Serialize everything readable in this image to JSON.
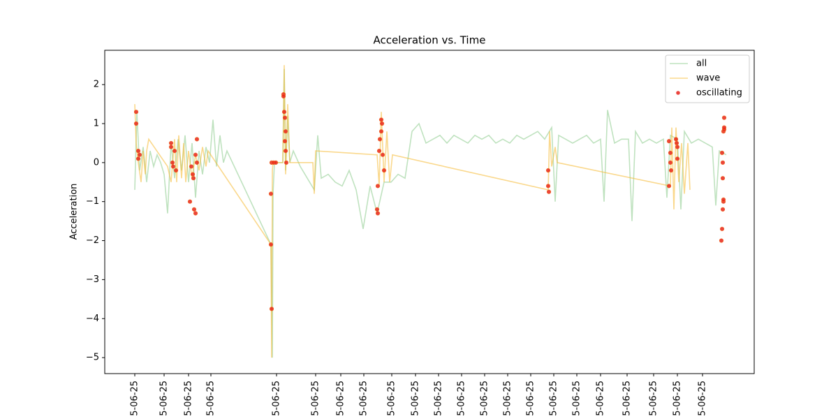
{
  "chart_data": {
    "type": "line",
    "title": "Acceleration vs. Time",
    "ylabel": "Acceleration",
    "xlim": [
      0,
      930
    ],
    "ylim": [
      -5.41,
      2.88
    ],
    "legend": "upper right",
    "xticks": [
      {
        "value": 43,
        "label": "5-06-25"
      },
      {
        "value": 85,
        "label": "5-06-25"
      },
      {
        "value": 120,
        "label": "5-06-25"
      },
      {
        "value": 152,
        "label": "5-06-25"
      },
      {
        "value": 246,
        "label": "5-06-25"
      },
      {
        "value": 302,
        "label": "5-06-25"
      },
      {
        "value": 338,
        "label": "5-06-25"
      },
      {
        "value": 371,
        "label": "5-06-25"
      },
      {
        "value": 411,
        "label": "5-06-25"
      },
      {
        "value": 445,
        "label": "5-06-25"
      },
      {
        "value": 478,
        "label": "5-06-25"
      },
      {
        "value": 511,
        "label": "5-06-25"
      },
      {
        "value": 544,
        "label": "5-06-25"
      },
      {
        "value": 577,
        "label": "5-06-25"
      },
      {
        "value": 610,
        "label": "5-06-25"
      },
      {
        "value": 643,
        "label": "5-06-25"
      },
      {
        "value": 676,
        "label": "5-06-25"
      },
      {
        "value": 710,
        "label": "5-06-25"
      },
      {
        "value": 748,
        "label": "5-06-25"
      },
      {
        "value": 786,
        "label": "5-06-25"
      },
      {
        "value": 820,
        "label": "5-06-25"
      },
      {
        "value": 856,
        "label": "5-06-25"
      }
    ],
    "yticks": [
      {
        "value": -5,
        "label": "−5"
      },
      {
        "value": -4,
        "label": "−4"
      },
      {
        "value": -3,
        "label": "−3"
      },
      {
        "value": -2,
        "label": "−2"
      },
      {
        "value": -1,
        "label": "−1"
      },
      0,
      1,
      2
    ],
    "series": [
      {
        "name": "all",
        "type": "line",
        "color": "#2ca02c",
        "alpha": 0.3,
        "x": [
          43,
          46,
          50,
          55,
          60,
          65,
          70,
          75,
          80,
          85,
          90,
          95,
          100,
          105,
          110,
          115,
          120,
          125,
          130,
          135,
          140,
          145,
          150,
          155,
          160,
          165,
          170,
          175,
          238,
          240,
          241,
          243,
          255,
          257,
          259,
          262,
          265,
          270,
          280,
          300,
          305,
          310,
          320,
          330,
          340,
          350,
          360,
          370,
          380,
          390,
          400,
          410,
          420,
          430,
          440,
          450,
          460,
          470,
          480,
          490,
          500,
          510,
          520,
          530,
          540,
          550,
          560,
          570,
          580,
          590,
          600,
          610,
          620,
          630,
          640,
          645,
          650,
          660,
          670,
          680,
          690,
          700,
          710,
          715,
          720,
          730,
          740,
          750,
          755,
          760,
          770,
          780,
          790,
          800,
          805,
          810,
          820,
          825,
          830,
          840,
          850,
          860,
          870,
          875,
          880,
          890
        ],
        "values": [
          -0.7,
          1.3,
          -0.2,
          0.4,
          -0.5,
          0.3,
          -0.1,
          0.2,
          0.0,
          -0.3,
          -1.3,
          0.5,
          -0.4,
          0.6,
          -0.2,
          0.7,
          -0.5,
          0.5,
          -0.9,
          0.3,
          -0.3,
          0.4,
          0.0,
          1.1,
          -0.1,
          0.7,
          0.0,
          0.3,
          -2.1,
          -5.0,
          -0.8,
          0.0,
          0.0,
          2.4,
          -0.2,
          1.2,
          0.0,
          0.3,
          -0.1,
          -0.7,
          0.7,
          -0.4,
          -0.3,
          -0.5,
          -0.6,
          -0.2,
          -0.7,
          -1.7,
          -0.6,
          -1.3,
          -0.5,
          -0.5,
          -0.3,
          -0.4,
          0.8,
          1.0,
          0.5,
          0.6,
          0.7,
          0.5,
          0.7,
          0.6,
          0.5,
          0.7,
          0.6,
          0.7,
          0.5,
          0.6,
          0.5,
          0.7,
          0.6,
          0.7,
          0.8,
          0.6,
          0.9,
          -1.0,
          0.7,
          0.6,
          0.5,
          0.6,
          0.7,
          0.5,
          0.6,
          -1.0,
          1.35,
          0.5,
          0.6,
          0.6,
          -1.5,
          0.8,
          0.5,
          0.6,
          0.5,
          0.6,
          -0.9,
          0.7,
          0.6,
          -1.2,
          0.8,
          0.5,
          0.6,
          0.5,
          0.4,
          -1.1,
          0.3,
          0.2
        ]
      },
      {
        "name": "wave",
        "type": "line",
        "color": "#f5b82e",
        "alpha": 0.55,
        "x": [
          43,
          45,
          48,
          52,
          55,
          58,
          60,
          63,
          90,
          95,
          100,
          103,
          106,
          110,
          113,
          116,
          120,
          125,
          130,
          135,
          140,
          145,
          148,
          238,
          239,
          240,
          241,
          255,
          257,
          259,
          262,
          265,
          270,
          298,
          300,
          302,
          390,
          393,
          396,
          400,
          404,
          408,
          412,
          635,
          637,
          640,
          645,
          648,
          810,
          812,
          815,
          818,
          822,
          826,
          830,
          835,
          838
        ],
        "values": [
          1.5,
          0.5,
          0.0,
          -0.5,
          0.3,
          -0.3,
          0.3,
          0.6,
          -0.1,
          -0.5,
          0.6,
          -0.5,
          0.7,
          -0.4,
          0.5,
          -0.5,
          0.3,
          -0.4,
          0.2,
          -0.2,
          0.4,
          -0.1,
          0.3,
          -2.1,
          -5.0,
          -0.2,
          0.0,
          0.0,
          2.5,
          -0.3,
          1.5,
          0.0,
          0.0,
          0.0,
          -0.8,
          0.3,
          0.2,
          -0.6,
          1.3,
          -0.5,
          0.8,
          -0.5,
          0.2,
          -0.7,
          0.8,
          -0.1,
          0.4,
          0.0,
          -0.6,
          0.9,
          -1.2,
          0.9,
          -0.5,
          0.5,
          -0.8,
          0.5,
          -0.7
        ]
      },
      {
        "name": "oscillating",
        "type": "scatter",
        "color": "#e8231b",
        "alpha": 0.85,
        "x": [
          45,
          45,
          48,
          48,
          50,
          95,
          95,
          97,
          98,
          100,
          102,
          122,
          124,
          126,
          127,
          128,
          130,
          132,
          130,
          132,
          238,
          239,
          238,
          239,
          242,
          245,
          256,
          256,
          257,
          258,
          259,
          258,
          259,
          260,
          390,
          391,
          391,
          393,
          394,
          396,
          397,
          396,
          398,
          400,
          635,
          635,
          636,
          808,
          808,
          810,
          810,
          811,
          818,
          819,
          820,
          820,
          883,
          884,
          885,
          886,
          886,
          884,
          885,
          885,
          886,
          887,
          887,
          887
        ],
        "values": [
          1.3,
          1.0,
          0.3,
          0.1,
          0.2,
          0.5,
          0.4,
          0.0,
          -0.1,
          0.3,
          -0.2,
          -1.0,
          -0.1,
          -0.3,
          -0.4,
          -1.2,
          -1.3,
          0.6,
          0.2,
          0.0,
          -2.1,
          -3.75,
          -0.8,
          0.0,
          0.0,
          0.0,
          1.75,
          1.7,
          1.3,
          1.15,
          0.8,
          0.55,
          0.3,
          0.0,
          -1.2,
          -1.3,
          -0.6,
          0.3,
          0.6,
          1.1,
          1.0,
          0.8,
          0.2,
          -0.2,
          -0.2,
          -0.6,
          -0.75,
          -0.6,
          0.55,
          0.25,
          0.0,
          -0.2,
          0.6,
          0.5,
          0.4,
          0.1,
          -2.0,
          -1.7,
          -1.2,
          -1.0,
          -0.95,
          0.25,
          0.0,
          -0.4,
          0.8,
          0.85,
          0.9,
          1.15
        ]
      }
    ]
  }
}
